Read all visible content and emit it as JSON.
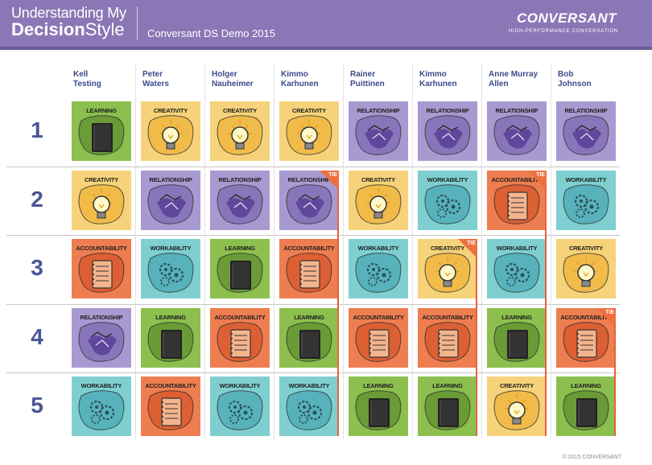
{
  "header": {
    "title_line1": "Understanding My",
    "title_bold": "Decision",
    "title_rest": "Style",
    "subtitle": "Conversant DS Demo 2015",
    "brand": "CONVERSANT",
    "brand_tagline": "HIGH-PERFORMANCE CONVERSATION"
  },
  "rank_labels": [
    "1",
    "2",
    "3",
    "4",
    "5"
  ],
  "people": [
    {
      "first": "Kell",
      "last": "Testing",
      "styles": [
        "LEARNING",
        "CREATIVITY",
        "ACCOUNTABILITY",
        "RELATIONSHIP",
        "WORKABILITY"
      ],
      "tie_rank": null
    },
    {
      "first": "Peter",
      "last": "Waters",
      "styles": [
        "CREATIVITY",
        "RELATIONSHIP",
        "WORKABILITY",
        "LEARNING",
        "ACCOUNTABILITY"
      ],
      "tie_rank": null
    },
    {
      "first": "Holger",
      "last": "Nauheimer",
      "styles": [
        "CREATIVITY",
        "RELATIONSHIP",
        "LEARNING",
        "ACCOUNTABILITY",
        "WORKABILITY"
      ],
      "tie_rank": null
    },
    {
      "first": "Kimmo",
      "last": "Karhunen",
      "styles": [
        "CREATIVITY",
        "RELATIONSHIP",
        "ACCOUNTABILITY",
        "LEARNING",
        "WORKABILITY"
      ],
      "tie_rank": 2
    },
    {
      "first": "Rainer",
      "last": "Puittinen",
      "styles": [
        "RELATIONSHIP",
        "CREATIVITY",
        "WORKABILITY",
        "ACCOUNTABILITY",
        "LEARNING"
      ],
      "tie_rank": null
    },
    {
      "first": "Kimmo",
      "last": "Karhunen",
      "styles": [
        "RELATIONSHIP",
        "WORKABILITY",
        "CREATIVITY",
        "ACCOUNTABILITY",
        "LEARNING"
      ],
      "tie_rank": 3
    },
    {
      "first": "Anne Murray",
      "last": "Allen",
      "styles": [
        "RELATIONSHIP",
        "ACCOUNTABILITY",
        "WORKABILITY",
        "LEARNING",
        "CREATIVITY"
      ],
      "tie_rank": 2
    },
    {
      "first": "Bob",
      "last": "Johnson",
      "styles": [
        "RELATIONSHIP",
        "WORKABILITY",
        "CREATIVITY",
        "ACCOUNTABILITY",
        "LEARNING"
      ],
      "tie_rank": 4
    }
  ],
  "tie_label": "TIE",
  "style_colors": {
    "LEARNING": "#8cbf4e",
    "CREATIVITY": "#f6d37a",
    "RELATIONSHIP": "#a89ad0",
    "ACCOUNTABILITY": "#ee7e50",
    "WORKABILITY": "#7fcfd0"
  },
  "style_icons": {
    "LEARNING": "book-icon",
    "CREATIVITY": "lightbulb-icon",
    "RELATIONSHIP": "handshake-icon",
    "ACCOUNTABILITY": "notebook-icon",
    "WORKABILITY": "gears-icon"
  },
  "footer": {
    "copyright": "© 2015 CONVERSANT"
  }
}
